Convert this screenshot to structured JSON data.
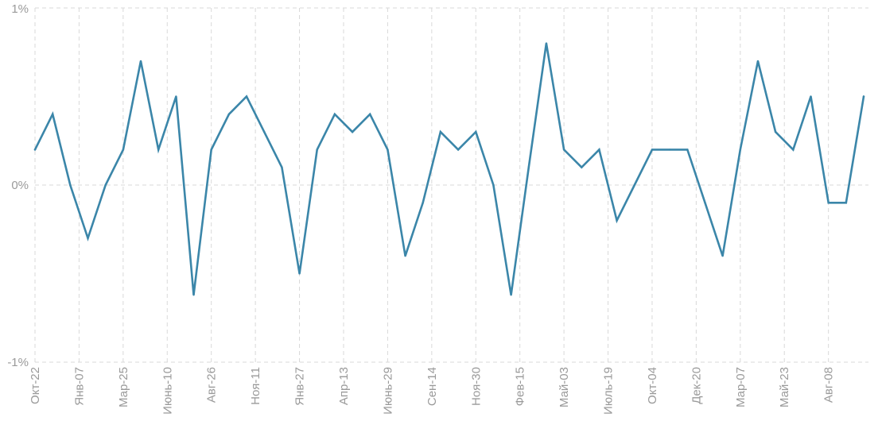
{
  "chart_data": {
    "type": "line",
    "title": "",
    "xlabel": "",
    "ylabel": "",
    "ylim": [
      -1,
      1
    ],
    "yticks": [
      {
        "value": 1,
        "label": "1%"
      },
      {
        "value": 0,
        "label": "0%"
      },
      {
        "value": -1,
        "label": "-1%"
      }
    ],
    "xticks": [
      {
        "index": 0,
        "label": "Окт-22"
      },
      {
        "index": 2.5,
        "label": "Янв-07"
      },
      {
        "index": 5,
        "label": "Мар-25"
      },
      {
        "index": 7.5,
        "label": "Июнь-10"
      },
      {
        "index": 10,
        "label": "Авг-26"
      },
      {
        "index": 12.5,
        "label": "Ноя-11"
      },
      {
        "index": 15,
        "label": "Янв-27"
      },
      {
        "index": 17.5,
        "label": "Апр-13"
      },
      {
        "index": 20,
        "label": "Июнь-29"
      },
      {
        "index": 22.5,
        "label": "Сен-14"
      },
      {
        "index": 25,
        "label": "Ноя-30"
      },
      {
        "index": 27.5,
        "label": "Фев-15"
      },
      {
        "index": 30,
        "label": "Май-03"
      },
      {
        "index": 32.5,
        "label": "Июль-19"
      },
      {
        "index": 35,
        "label": "Окт-04"
      },
      {
        "index": 37.5,
        "label": "Дек-20"
      },
      {
        "index": 40,
        "label": "Мар-07"
      },
      {
        "index": 42.5,
        "label": "Май-23"
      },
      {
        "index": 45,
        "label": "Авг-08"
      }
    ],
    "grid": true,
    "series": [
      {
        "color": "#3b86a9",
        "values": [
          0.2,
          0.4,
          0.0,
          -0.3,
          0.0,
          0.2,
          0.7,
          0.2,
          0.5,
          -0.62,
          0.2,
          0.4,
          0.5,
          0.3,
          0.1,
          -0.5,
          0.2,
          0.4,
          0.3,
          0.4,
          0.2,
          -0.4,
          -0.1,
          0.3,
          0.2,
          0.3,
          0.0,
          -0.62,
          0.1,
          0.8,
          0.2,
          0.1,
          0.2,
          -0.2,
          0.0,
          0.2,
          0.2,
          0.2,
          -0.1,
          -0.4,
          0.2,
          0.7,
          0.3,
          0.2,
          0.5,
          -0.1,
          -0.1,
          0.5
        ]
      }
    ]
  }
}
